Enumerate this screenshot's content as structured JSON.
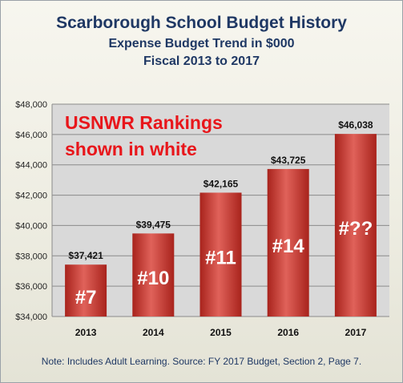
{
  "titles": {
    "main": "Scarborough School Budget History",
    "sub1": "Expense Budget Trend in $000",
    "sub2": "Fiscal 2013 to 2017"
  },
  "annotation": [
    "USNWR Rankings",
    "shown in white"
  ],
  "note": "Note: Includes Adult Learning.  Source:  FY 2017 Budget, Section 2, Page 7.",
  "colors": {
    "title": "#1f3864",
    "bar": "#c0392b",
    "bar_light": "#e0625a",
    "annotation": "#e8161b",
    "plot_bg": "#d9d9d9"
  },
  "chart_data": {
    "type": "bar",
    "categories": [
      "2013",
      "2014",
      "2015",
      "2016",
      "2017"
    ],
    "values": [
      37421,
      39475,
      42165,
      43725,
      46038
    ],
    "data_labels": [
      "$37,421",
      "$39,475",
      "$42,165",
      "$43,725",
      "$46,038"
    ],
    "rank_labels": [
      "#7",
      "#10",
      "#11",
      "#14",
      "#??"
    ],
    "yticks": [
      34000,
      36000,
      38000,
      40000,
      42000,
      44000,
      46000,
      48000
    ],
    "ytick_labels": [
      "$34,000",
      "$36,000",
      "$38,000",
      "$40,000",
      "$42,000",
      "$44,000",
      "$46,000",
      "$48,000"
    ],
    "ylim": [
      34000,
      48000
    ],
    "grid": true,
    "legend": "none"
  }
}
